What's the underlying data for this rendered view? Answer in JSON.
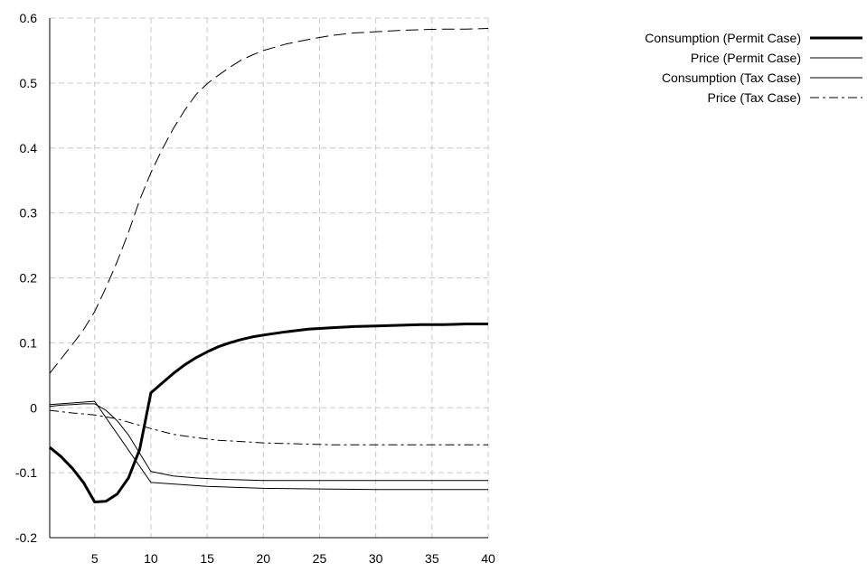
{
  "chart_data": {
    "type": "line",
    "title": "",
    "xlabel": "",
    "ylabel": "",
    "xlim": [
      1,
      40
    ],
    "ylim": [
      -0.2,
      0.6
    ],
    "x_ticks": [
      5,
      10,
      15,
      20,
      25,
      30,
      35,
      40
    ],
    "y_ticks": [
      -0.2,
      -0.1,
      0,
      0.1,
      0.2,
      0.3,
      0.4,
      0.5,
      0.6
    ],
    "y_tick_labels": [
      "-0.2",
      "-0.1",
      "0",
      "0.1",
      "0.2",
      "0.3",
      "0.4",
      "0.5",
      "0.6"
    ],
    "grid": true,
    "legend_position": "top-right",
    "series": [
      {
        "name": "Consumption (Permit Case)",
        "style": "thick-solid",
        "color": "#000000",
        "x": [
          1,
          2,
          3,
          4,
          5,
          6,
          7,
          8,
          9,
          10,
          11,
          12,
          13,
          14,
          15,
          16,
          17,
          18,
          19,
          20,
          22,
          24,
          26,
          28,
          30,
          32,
          34,
          36,
          38,
          40
        ],
        "y": [
          -0.061,
          -0.075,
          -0.093,
          -0.115,
          -0.145,
          -0.144,
          -0.133,
          -0.108,
          -0.064,
          0.023,
          0.038,
          0.053,
          0.066,
          0.077,
          0.086,
          0.094,
          0.1,
          0.105,
          0.109,
          0.112,
          0.117,
          0.121,
          0.123,
          0.125,
          0.126,
          0.127,
          0.128,
          0.128,
          0.129,
          0.129
        ]
      },
      {
        "name": "Price (Permit Case)",
        "style": "thin-solid",
        "color": "#000000",
        "x": [
          1,
          5,
          10,
          15,
          20,
          25,
          30,
          35,
          40
        ],
        "y": [
          0.005,
          0.01,
          -0.115,
          -0.121,
          -0.124,
          -0.125,
          -0.126,
          -0.126,
          -0.126
        ]
      },
      {
        "name": "Consumption (Tax Case)",
        "style": "thin-solid",
        "color": "#000000",
        "x": [
          1,
          2,
          3,
          4,
          5,
          6,
          7,
          8,
          9,
          10,
          12,
          14,
          16,
          18,
          20,
          22,
          24,
          26,
          28,
          30,
          35,
          40
        ],
        "y": [
          0.002,
          0.004,
          0.005,
          0.006,
          0.006,
          -0.004,
          -0.02,
          -0.042,
          -0.07,
          -0.098,
          -0.105,
          -0.108,
          -0.11,
          -0.111,
          -0.112,
          -0.112,
          -0.112,
          -0.112,
          -0.112,
          -0.112,
          -0.112,
          -0.112
        ]
      },
      {
        "name": "Price (Tax Case)",
        "style": "dashed",
        "color": "#000000",
        "x": [
          1,
          3,
          5,
          7,
          9,
          10,
          12,
          14,
          16,
          18,
          20,
          22,
          24,
          26,
          28,
          30,
          32,
          35,
          40
        ],
        "y": [
          -0.004,
          -0.008,
          -0.011,
          -0.017,
          -0.027,
          -0.032,
          -0.041,
          -0.046,
          -0.05,
          -0.052,
          -0.054,
          -0.055,
          -0.056,
          -0.057,
          -0.057,
          -0.057,
          -0.057,
          -0.057,
          -0.057
        ]
      },
      {
        "name": "",
        "style": "long-dash",
        "color": "#000000",
        "x": [
          1,
          2,
          3,
          4,
          5,
          6,
          7,
          8,
          9,
          10,
          11,
          12,
          13,
          14,
          15,
          16,
          17,
          18,
          19,
          20,
          22,
          24,
          26,
          28,
          30,
          32,
          34,
          36,
          38,
          40
        ],
        "y": [
          0.053,
          0.075,
          0.097,
          0.12,
          0.148,
          0.185,
          0.225,
          0.27,
          0.32,
          0.362,
          0.398,
          0.43,
          0.458,
          0.482,
          0.499,
          0.512,
          0.524,
          0.535,
          0.543,
          0.55,
          0.56,
          0.567,
          0.573,
          0.577,
          0.579,
          0.581,
          0.582,
          0.583,
          0.583,
          0.584
        ]
      }
    ]
  }
}
